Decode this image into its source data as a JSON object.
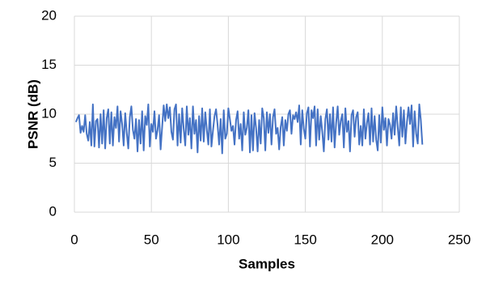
{
  "chart_data": {
    "type": "line",
    "xlabel": "Samples",
    "ylabel": "PSNR (dB)",
    "xlim": [
      0,
      250
    ],
    "xticks": [
      0,
      50,
      100,
      150,
      200,
      250
    ],
    "ylim": [
      0,
      20
    ],
    "yticks": [
      0,
      5,
      10,
      15,
      20
    ],
    "grid": true,
    "x": [
      1,
      2,
      3,
      4,
      5,
      6,
      7,
      8,
      9,
      10,
      11,
      12,
      13,
      14,
      15,
      16,
      17,
      18,
      19,
      20,
      21,
      22,
      23,
      24,
      25,
      26,
      27,
      28,
      29,
      30,
      31,
      32,
      33,
      34,
      35,
      36,
      37,
      38,
      39,
      40,
      41,
      42,
      43,
      44,
      45,
      46,
      47,
      48,
      49,
      50,
      51,
      52,
      53,
      54,
      55,
      56,
      57,
      58,
      59,
      60,
      61,
      62,
      63,
      64,
      65,
      66,
      67,
      68,
      69,
      70,
      71,
      72,
      73,
      74,
      75,
      76,
      77,
      78,
      79,
      80,
      81,
      82,
      83,
      84,
      85,
      86,
      87,
      88,
      89,
      90,
      91,
      92,
      93,
      94,
      95,
      96,
      97,
      98,
      99,
      100,
      101,
      102,
      103,
      104,
      105,
      106,
      107,
      108,
      109,
      110,
      111,
      112,
      113,
      114,
      115,
      116,
      117,
      118,
      119,
      120,
      121,
      122,
      123,
      124,
      125,
      126,
      127,
      128,
      129,
      130,
      131,
      132,
      133,
      134,
      135,
      136,
      137,
      138,
      139,
      140,
      141,
      142,
      143,
      144,
      145,
      146,
      147,
      148,
      149,
      150,
      151,
      152,
      153,
      154,
      155,
      156,
      157,
      158,
      159,
      160,
      161,
      162,
      163,
      164,
      165,
      166,
      167,
      168,
      169,
      170,
      171,
      172,
      173,
      174,
      175,
      176,
      177,
      178,
      179,
      180,
      181,
      182,
      183,
      184,
      185,
      186,
      187,
      188,
      189,
      190,
      191,
      192,
      193,
      194,
      195,
      196,
      197,
      198,
      199,
      200,
      201,
      202,
      203,
      204,
      205,
      206,
      207,
      208,
      209,
      210,
      211,
      212,
      213,
      214,
      215,
      216,
      217,
      218,
      219,
      220,
      221,
      222,
      223,
      224,
      225,
      226
    ],
    "series": [
      {
        "color": "#4472c4",
        "values": [
          9.2,
          9.6,
          9.9,
          8.1,
          8.8,
          8.2,
          9.9,
          8.0,
          7.3,
          9.2,
          6.8,
          11.0,
          6.7,
          9.3,
          9.5,
          6.6,
          10.0,
          7.0,
          10.4,
          6.5,
          9.6,
          10.5,
          7.0,
          10.2,
          6.8,
          9.7,
          8.6,
          10.8,
          7.2,
          10.3,
          9.0,
          6.8,
          10.1,
          8.1,
          6.5,
          9.7,
          10.8,
          8.4,
          7.5,
          9.5,
          6.2,
          9.4,
          7.0,
          10.3,
          6.3,
          9.8,
          8.9,
          11.0,
          6.7,
          9.0,
          8.2,
          10.3,
          7.5,
          8.4,
          9.9,
          6.4,
          8.7,
          10.9,
          9.3,
          11.0,
          9.6,
          10.7,
          8.2,
          7.4,
          10.5,
          11.0,
          6.8,
          10.0,
          7.1,
          10.6,
          8.5,
          6.8,
          10.8,
          7.9,
          9.6,
          6.5,
          10.8,
          8.0,
          9.4,
          6.1,
          9.8,
          7.3,
          10.6,
          7.2,
          10.2,
          8.4,
          6.9,
          10.5,
          6.7,
          8.3,
          9.8,
          10.5,
          8.9,
          6.9,
          9.5,
          6.0,
          10.4,
          7.5,
          8.0,
          10.6,
          9.5,
          8.3,
          8.8,
          6.9,
          9.4,
          10.3,
          7.5,
          9.0,
          6.3,
          10.2,
          7.9,
          8.6,
          10.4,
          6.1,
          9.9,
          6.3,
          10.1,
          8.6,
          6.2,
          9.4,
          7.0,
          10.6,
          9.6,
          6.3,
          10.2,
          8.1,
          10.0,
          6.9,
          9.7,
          10.5,
          8.0,
          8.6,
          6.4,
          8.7,
          9.7,
          6.8,
          9.4,
          8.3,
          10.0,
          10.4,
          8.0,
          9.9,
          9.5,
          10.2,
          9.2,
          10.9,
          6.9,
          10.4,
          8.5,
          7.5,
          10.1,
          10.7,
          6.7,
          10.4,
          9.6,
          10.8,
          6.8,
          10.5,
          7.4,
          9.8,
          8.2,
          6.2,
          9.5,
          10.5,
          7.4,
          10.0,
          7.2,
          10.7,
          6.6,
          9.1,
          10.8,
          7.9,
          9.3,
          10.0,
          6.6,
          10.6,
          8.2,
          9.3,
          6.2,
          9.9,
          10.4,
          7.7,
          9.7,
          10.2,
          6.9,
          8.8,
          6.8,
          10.5,
          7.5,
          9.1,
          10.1,
          6.9,
          10.6,
          7.2,
          9.8,
          7.4,
          6.3,
          9.9,
          7.1,
          10.7,
          8.4,
          9.6,
          6.8,
          9.5,
          8.9,
          7.5,
          10.1,
          7.9,
          10.8,
          8.7,
          6.8,
          10.7,
          7.7,
          10.4,
          7.0,
          9.2,
          10.7,
          9.0,
          10.9,
          6.7,
          10.3,
          8.0,
          7.0,
          11.0,
          9.4,
          6.9
        ]
      }
    ]
  }
}
